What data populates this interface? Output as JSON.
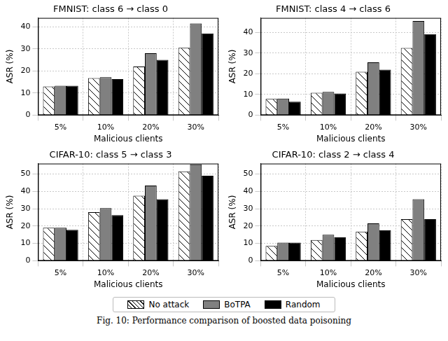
{
  "chart_data": [
    {
      "type": "bar",
      "title": "FMNIST: class 6 → class 0",
      "x_label": "Malicious clients",
      "y_label": "ASR (%)",
      "categories": [
        "5%",
        "10%",
        "20%",
        "30%"
      ],
      "series": [
        {
          "name": "No attack",
          "color": "#ffffff",
          "marker": "hatch",
          "values": [
            13,
            16.8,
            22,
            30.5
          ]
        },
        {
          "name": "BoTPA",
          "color": "#808080",
          "values": [
            13.3,
            17.2,
            28,
            41.5
          ]
        },
        {
          "name": "Random",
          "color": "#000000",
          "values": [
            13.3,
            16.3,
            25,
            37
          ]
        }
      ],
      "ylim": [
        0,
        44
      ],
      "yticks": [
        0,
        10,
        20,
        30,
        40
      ],
      "grid": true
    },
    {
      "type": "bar",
      "title": "FMNIST: class 4 → class 6",
      "x_label": "Malicious clients",
      "y_label": "ASR (%)",
      "categories": [
        "5%",
        "10%",
        "20%",
        "30%"
      ],
      "series": [
        {
          "name": "No attack",
          "color": "#ffffff",
          "marker": "hatch",
          "values": [
            7.8,
            10.8,
            21,
            32.5
          ]
        },
        {
          "name": "BoTPA",
          "color": "#808080",
          "values": [
            8,
            11.2,
            25.5,
            45.5
          ]
        },
        {
          "name": "Random",
          "color": "#000000",
          "values": [
            6.5,
            10.5,
            22,
            39.2
          ]
        }
      ],
      "ylim": [
        0,
        47
      ],
      "yticks": [
        0,
        10,
        20,
        30,
        40
      ],
      "grid": true
    },
    {
      "type": "bar",
      "title": "CIFAR-10: class 5 → class 3",
      "x_label": "Malicious clients",
      "y_label": "ASR (%)",
      "categories": [
        "5%",
        "10%",
        "20%",
        "30%"
      ],
      "series": [
        {
          "name": "No attack",
          "color": "#ffffff",
          "marker": "hatch",
          "values": [
            19,
            28,
            37.5,
            51.5
          ]
        },
        {
          "name": "BoTPA",
          "color": "#808080",
          "values": [
            19,
            30.3,
            43.3,
            55.5
          ]
        },
        {
          "name": "Random",
          "color": "#000000",
          "values": [
            17.8,
            26.3,
            35.5,
            49
          ]
        }
      ],
      "ylim": [
        0,
        56
      ],
      "yticks": [
        0,
        10,
        20,
        30,
        40,
        50
      ],
      "grid": true
    },
    {
      "type": "bar",
      "title": "CIFAR-10: class 2 → class 4",
      "x_label": "Malicious clients",
      "y_label": "ASR (%)",
      "categories": [
        "5%",
        "10%",
        "20%",
        "30%"
      ],
      "series": [
        {
          "name": "No attack",
          "color": "#ffffff",
          "marker": "hatch",
          "values": [
            8.5,
            12,
            16.8,
            24
          ]
        },
        {
          "name": "BoTPA",
          "color": "#808080",
          "values": [
            10.5,
            15,
            21.5,
            35.5
          ]
        },
        {
          "name": "Random",
          "color": "#000000",
          "values": [
            10.5,
            13.5,
            17.5,
            24
          ]
        }
      ],
      "ylim": [
        0,
        56
      ],
      "yticks": [
        0,
        10,
        20,
        30,
        40,
        50
      ],
      "grid": true
    }
  ],
  "legend": "bottom",
  "caption": "Fig. 10: Performance comparison of boosted data poisoning"
}
